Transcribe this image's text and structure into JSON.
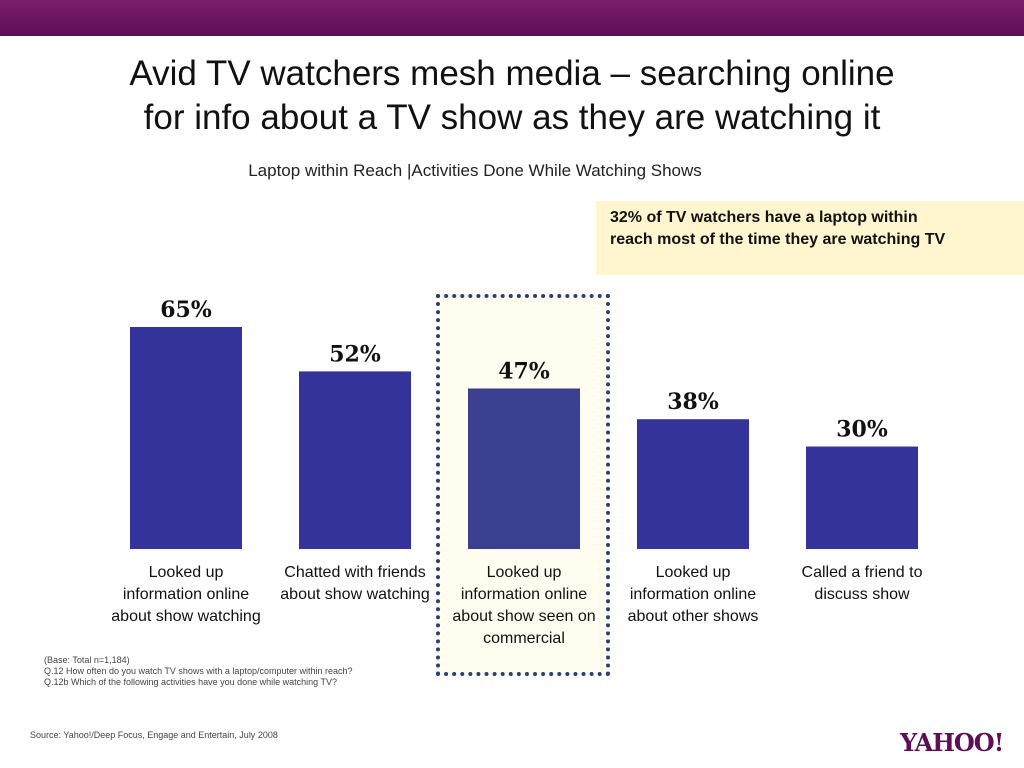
{
  "header": {
    "title_line1": "Avid TV watchers mesh media – searching online",
    "title_line2": "for info about a TV show as they are watching it",
    "subtitle": "Laptop within Reach  |Activities Done While Watching Shows"
  },
  "callout": {
    "text": "32% of TV watchers have a laptop within reach most of the time they are watching TV"
  },
  "chart_data": {
    "type": "bar",
    "categories": [
      "Looked up information online about show watching",
      "Chatted with friends about show watching",
      "Looked up information online about show seen on commercial",
      "Looked up information online about other shows",
      "Called a friend to discuss show"
    ],
    "values": [
      65,
      52,
      47,
      38,
      30
    ],
    "data_labels": [
      "65%",
      "52%",
      "47%",
      "38%",
      "30%"
    ],
    "highlighted_index": 2,
    "ylim": [
      0,
      65
    ],
    "grid": false,
    "colors": {
      "bar": "#333399",
      "highlighted_bar": "#3a3f8f"
    }
  },
  "notes": {
    "line1": "(Base: Total n=1,184)",
    "line2": "Q.12 How often do you watch TV shows with a laptop/computer within reach?",
    "line3": "Q.12b  Which of the following activities have you done while watching TV?"
  },
  "footer": {
    "source": "Source: Yahoo!/Deep Focus, Engage and Entertain, July 2008",
    "logo": "YAHOO!"
  }
}
